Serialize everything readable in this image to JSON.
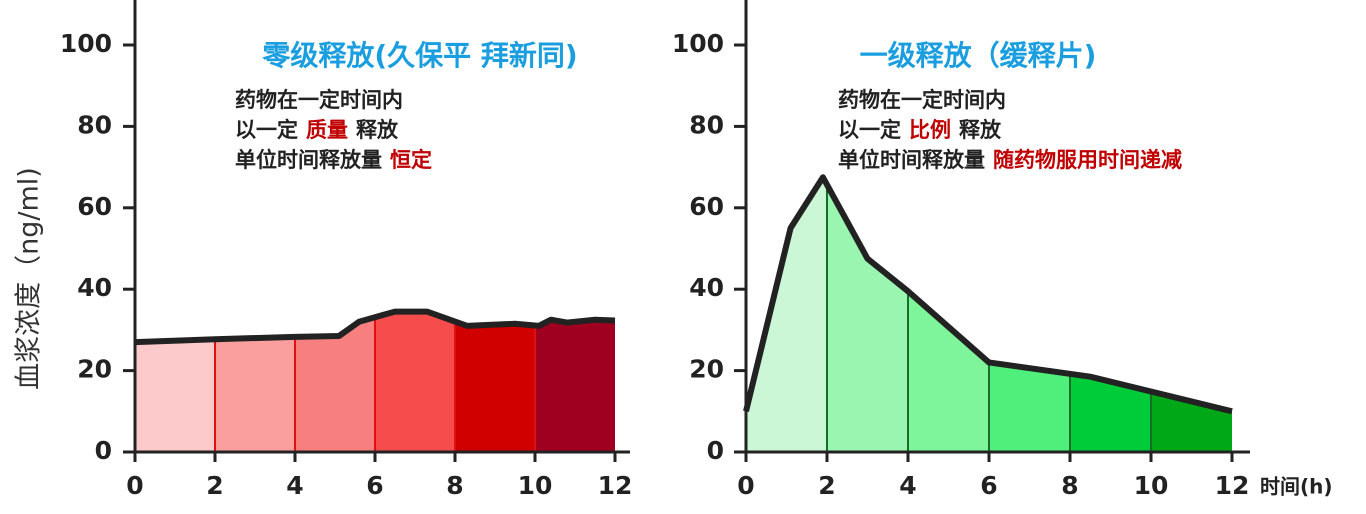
{
  "chart_data": [
    {
      "type": "area",
      "title": "零级释放(久保平 拜新同)",
      "y_label": "血浆浓度（ng/ml)",
      "annotation": [
        {
          "text": "药物在一定时间内"
        },
        {
          "text": "以一定",
          "highlight": "质量",
          "after": "释放"
        },
        {
          "text": "单位时间释放量",
          "highlight": "恒定"
        }
      ],
      "x": [
        0,
        2,
        4,
        5.1,
        5.6,
        6.5,
        7.3,
        8.3,
        9.5,
        10.1,
        10.4,
        10.8,
        11.5,
        12
      ],
      "values": [
        27,
        27.7,
        28.3,
        28.5,
        32,
        34.5,
        34.5,
        31,
        31.5,
        31,
        32.5,
        31.8,
        32.5,
        32.3
      ],
      "band_colors": [
        "#fccaca",
        "#fa9e9e",
        "#f77f7f",
        "#f64c4c",
        "#d00000",
        "#a00020"
      ],
      "divider_color": "#e01010",
      "line_color": "#222222",
      "title_color": "#1a9ee0",
      "highlight_color": "#c00000",
      "xlim": [
        0,
        12.4
      ],
      "ylim": [
        0,
        111
      ],
      "xticks": [
        0,
        2,
        4,
        6,
        8,
        10,
        12
      ],
      "yticks": [
        0,
        20,
        40,
        60,
        80,
        100
      ]
    },
    {
      "type": "area",
      "title": "一级释放（缓释片)",
      "x_label": "时间(h)",
      "annotation": [
        {
          "text": "药物在一定时间内"
        },
        {
          "text": "以一定",
          "highlight": "比例",
          "after": "释放"
        },
        {
          "text": "单位时间释放量",
          "highlight": "随药物服用时间递减"
        }
      ],
      "x": [
        0,
        1.1,
        1.9,
        3,
        4,
        6,
        8.5,
        12
      ],
      "values": [
        10,
        55,
        67.5,
        47.5,
        39.5,
        22,
        18.5,
        10
      ],
      "band_colors": [
        "#ccf7d6",
        "#99f5b0",
        "#7ef59a",
        "#50ee7a",
        "#00cc3a",
        "#00a818"
      ],
      "divider_color": "#1a6a2a",
      "line_color": "#222222",
      "title_color": "#1a9ee0",
      "highlight_color": "#c00000",
      "xlim": [
        0,
        12.4
      ],
      "ylim": [
        0,
        111
      ],
      "xticks": [
        0,
        2,
        4,
        6,
        8,
        10,
        12
      ],
      "yticks": [
        0,
        20,
        40,
        60,
        80,
        100
      ]
    }
  ]
}
